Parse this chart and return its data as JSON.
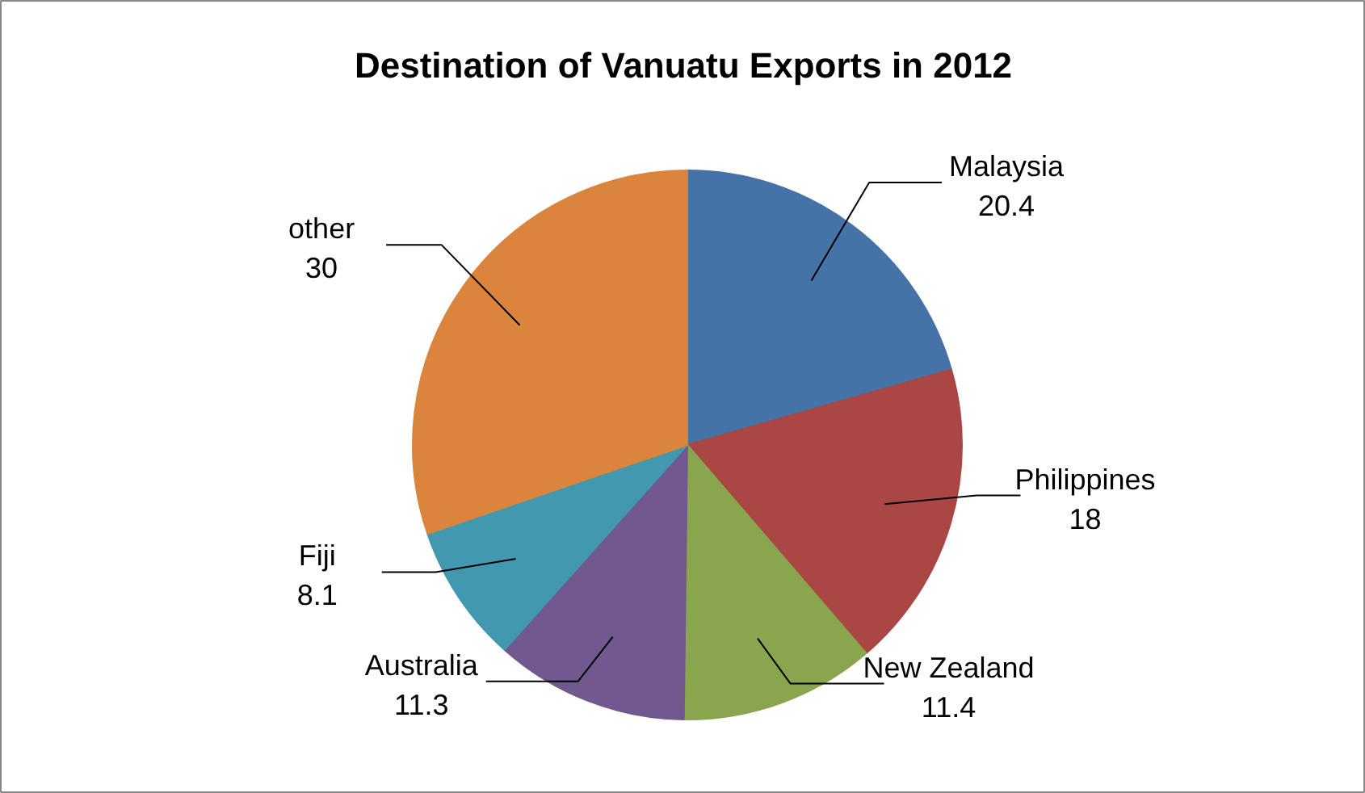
{
  "chart_data": {
    "type": "pie",
    "title": "Destination of Vanuatu Exports in 2012",
    "categories": [
      "Malaysia",
      "Philippines",
      "New Zealand",
      "Australia",
      "Fiji",
      "other"
    ],
    "values": [
      20.4,
      18,
      11.4,
      11.3,
      8.1,
      30
    ],
    "colors": [
      "#4572a7",
      "#aa4643",
      "#89a54e",
      "#71588f",
      "#4198af",
      "#db843d"
    ],
    "data_labels": true
  }
}
